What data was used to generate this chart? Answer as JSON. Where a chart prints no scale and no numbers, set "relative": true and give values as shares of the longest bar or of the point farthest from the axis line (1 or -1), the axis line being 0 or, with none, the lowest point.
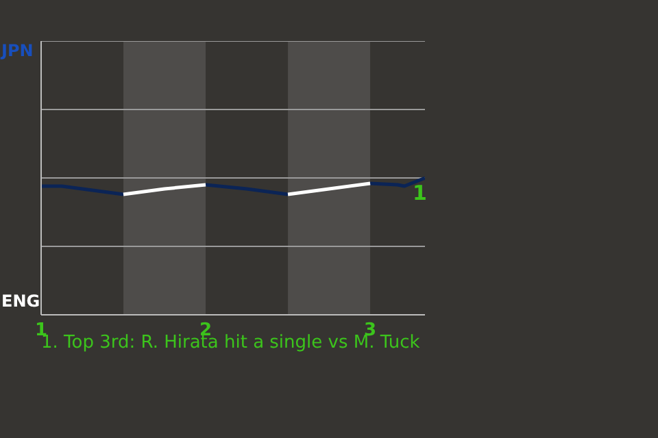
{
  "chart_data": {
    "type": "line",
    "relative": true,
    "x": [
      1,
      1.125,
      1.25,
      1.375,
      1.5,
      1.75,
      2,
      2.25,
      2.5,
      2.75,
      3,
      3.167,
      3.208,
      3.333
    ],
    "series": [
      {
        "color": "#0b2456",
        "values": [
          0.94,
          0.94,
          0.92,
          0.9,
          0.88,
          null,
          0.95,
          0.92,
          0.88,
          null,
          0.96,
          0.95,
          0.94,
          1
        ]
      },
      {
        "color": "#ffffff",
        "values": [
          null,
          null,
          null,
          null,
          0.88,
          0.92,
          0.95,
          null,
          0.88,
          0.92,
          0.96,
          null,
          null,
          null
        ]
      }
    ],
    "xlim": [
      1,
      3.333
    ],
    "xticks": [
      1,
      2,
      3
    ],
    "ref_lines": [
      {
        "axis": "y",
        "value": 0.5,
        "color": "#9a9a9a"
      },
      {
        "axis": "y",
        "value": 1,
        "color": "#9a9a9a"
      },
      {
        "axis": "y",
        "value": 1.5,
        "color": "#9a9a9a"
      },
      {
        "axis": "y",
        "value": 2,
        "color": "#9a9a9a"
      }
    ],
    "legend": false,
    "marker": "none",
    "line_style": "solid",
    "bands": [
      {
        "axis": "x",
        "from": 1.5,
        "to": 2,
        "color": "#4e4c4a"
      },
      {
        "axis": "x",
        "from": 2.5,
        "to": 3,
        "color": "#4e4c4a"
      }
    ],
    "annotations": [
      "JPN",
      "ENG",
      "1",
      "1. Top 3rd: R. Hirata hit a single vs M. Tuck"
    ]
  }
}
